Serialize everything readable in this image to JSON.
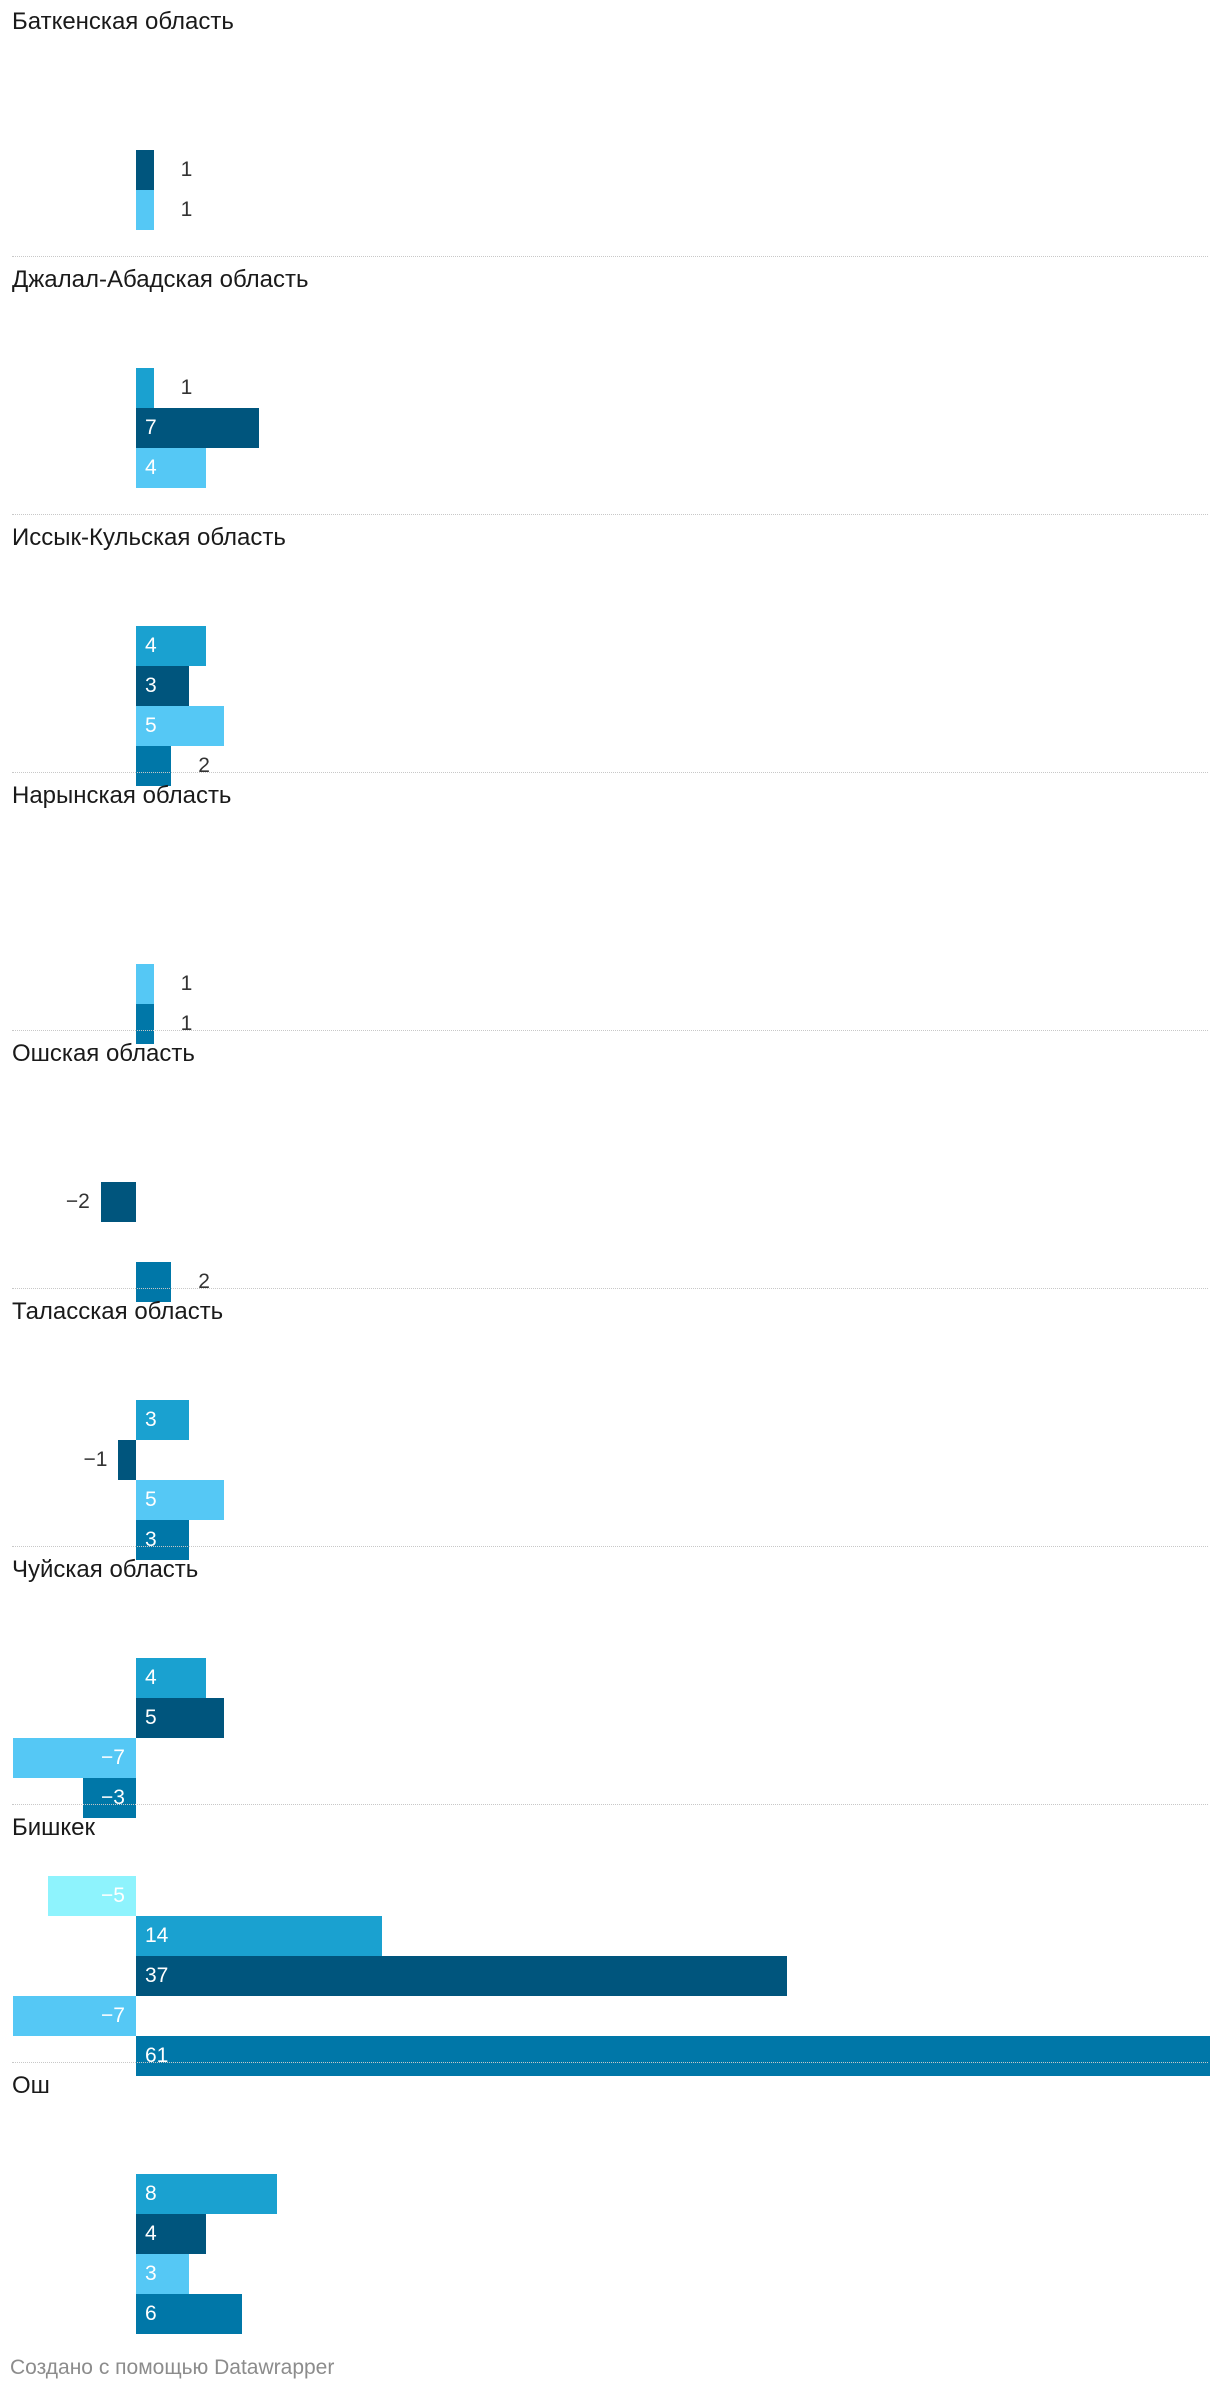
{
  "chart_data": {
    "type": "bar",
    "orientation": "horizontal",
    "layout": "small-multiples",
    "x_range": [
      -7,
      61
    ],
    "grid": false,
    "legend": "none",
    "colors": {
      "s1": "#8ef3fd",
      "s2": "#1aa1d0",
      "s3": "#00557d",
      "s4": "#55c8f5",
      "s5": "#0077a8"
    },
    "label_colors": {
      "inside": "#ffffff",
      "outside": "#333333"
    },
    "panels": [
      {
        "title": "Баткенская область",
        "bars": [
          {
            "series": "s1",
            "value": null
          },
          {
            "series": "s2",
            "value": null
          },
          {
            "series": "s3",
            "value": 1,
            "label": "1"
          },
          {
            "series": "s4",
            "value": 1,
            "label": "1"
          }
        ]
      },
      {
        "title": "Джалал-Абадская область",
        "bars": [
          {
            "series": "s1",
            "value": null
          },
          {
            "series": "s2",
            "value": 1,
            "label": "1"
          },
          {
            "series": "s3",
            "value": 7,
            "label": "7"
          },
          {
            "series": "s4",
            "value": 4,
            "label": "4"
          }
        ]
      },
      {
        "title": "Иссык-Кульская область",
        "bars": [
          {
            "series": "s1",
            "value": null
          },
          {
            "series": "s2",
            "value": 4,
            "label": "4"
          },
          {
            "series": "s3",
            "value": 3,
            "label": "3"
          },
          {
            "series": "s4",
            "value": 5,
            "label": "5"
          },
          {
            "series": "s5",
            "value": 2,
            "label": "2"
          }
        ]
      },
      {
        "title": "Нарынская область",
        "bars": [
          {
            "series": "s1",
            "value": null
          },
          {
            "series": "s2",
            "value": null
          },
          {
            "series": "s3",
            "value": null
          },
          {
            "series": "s4",
            "value": 1,
            "label": "1"
          },
          {
            "series": "s5",
            "value": 1,
            "label": "1"
          }
        ]
      },
      {
        "title": "Ошская область",
        "bars": [
          {
            "series": "s1",
            "value": null
          },
          {
            "series": "s2",
            "value": null
          },
          {
            "series": "s3",
            "value": -2,
            "label": "−2"
          },
          {
            "series": "s4",
            "value": null
          },
          {
            "series": "s5",
            "value": 2,
            "label": "2"
          }
        ]
      },
      {
        "title": "Таласская область",
        "bars": [
          {
            "series": "s1",
            "value": null
          },
          {
            "series": "s2",
            "value": 3,
            "label": "3"
          },
          {
            "series": "s3",
            "value": -1,
            "label": "−1"
          },
          {
            "series": "s4",
            "value": 5,
            "label": "5"
          },
          {
            "series": "s5",
            "value": 3,
            "label": "3"
          }
        ]
      },
      {
        "title": "Чуйская область",
        "bars": [
          {
            "series": "s1",
            "value": null
          },
          {
            "series": "s2",
            "value": 4,
            "label": "4"
          },
          {
            "series": "s3",
            "value": 5,
            "label": "5"
          },
          {
            "series": "s4",
            "value": -7,
            "label": "−7"
          },
          {
            "series": "s5",
            "value": -3,
            "label": "−3"
          }
        ]
      },
      {
        "title": "Бишкек",
        "bars": [
          {
            "series": "s1",
            "value": -5,
            "label": "−5"
          },
          {
            "series": "s2",
            "value": 14,
            "label": "14"
          },
          {
            "series": "s3",
            "value": 37,
            "label": "37"
          },
          {
            "series": "s4",
            "value": -7,
            "label": "−7"
          },
          {
            "series": "s5",
            "value": 61,
            "label": "61"
          }
        ]
      },
      {
        "title": "Ош",
        "bars": [
          {
            "series": "s1",
            "value": null
          },
          {
            "series": "s2",
            "value": 8,
            "label": "8"
          },
          {
            "series": "s3",
            "value": 4,
            "label": "4"
          },
          {
            "series": "s4",
            "value": 3,
            "label": "3"
          },
          {
            "series": "s5",
            "value": 6,
            "label": "6"
          }
        ]
      }
    ]
  },
  "credit": "Создано с помощью Datawrapper"
}
